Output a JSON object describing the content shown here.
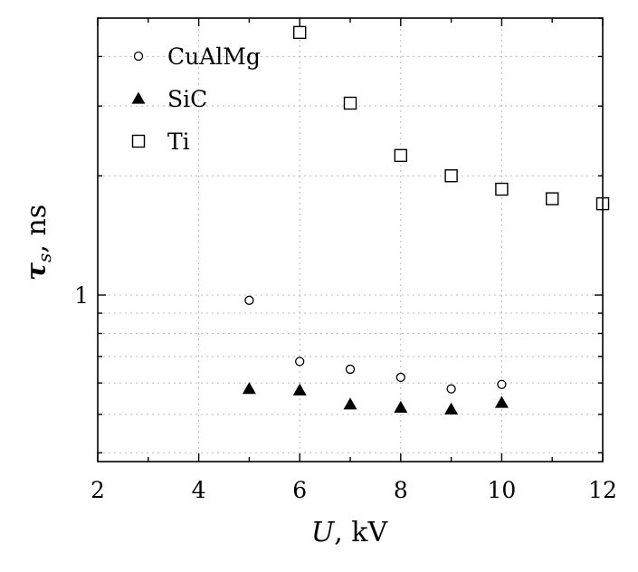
{
  "chart_data": {
    "type": "scatter",
    "xscale": "linear",
    "yscale": "log",
    "xlim": [
      2,
      12
    ],
    "ylim": [
      0.38,
      5.0
    ],
    "xticks": [
      2,
      4,
      6,
      8,
      10,
      12
    ],
    "xtick_labels": [
      "2",
      "4",
      "6",
      "8",
      "10",
      "12"
    ],
    "yticks_labeled": [
      1
    ],
    "ytick_labels": [
      "1"
    ],
    "xlabel": {
      "var": "U",
      "sep": ", ",
      "unit": "kV"
    },
    "ylabel": {
      "var": "τ",
      "sub": "s",
      "sep": ", ",
      "unit": "ns"
    },
    "grid": true,
    "legend_position": "top-left",
    "series": [
      {
        "name": "CuAlMg",
        "marker": "open-circle",
        "x": [
          5,
          6,
          7,
          8,
          9,
          10
        ],
        "y": [
          0.97,
          0.68,
          0.65,
          0.62,
          0.58,
          0.595
        ]
      },
      {
        "name": "SiC",
        "marker": "filled-triangle",
        "x": [
          5,
          6,
          7,
          8,
          9,
          10
        ],
        "y": [
          0.58,
          0.575,
          0.53,
          0.52,
          0.515,
          0.535
        ]
      },
      {
        "name": "Ti",
        "marker": "open-square",
        "x": [
          6,
          7,
          8,
          9,
          10,
          11,
          12
        ],
        "y": [
          4.6,
          3.05,
          2.25,
          2.0,
          1.85,
          1.75,
          1.7
        ]
      }
    ]
  }
}
